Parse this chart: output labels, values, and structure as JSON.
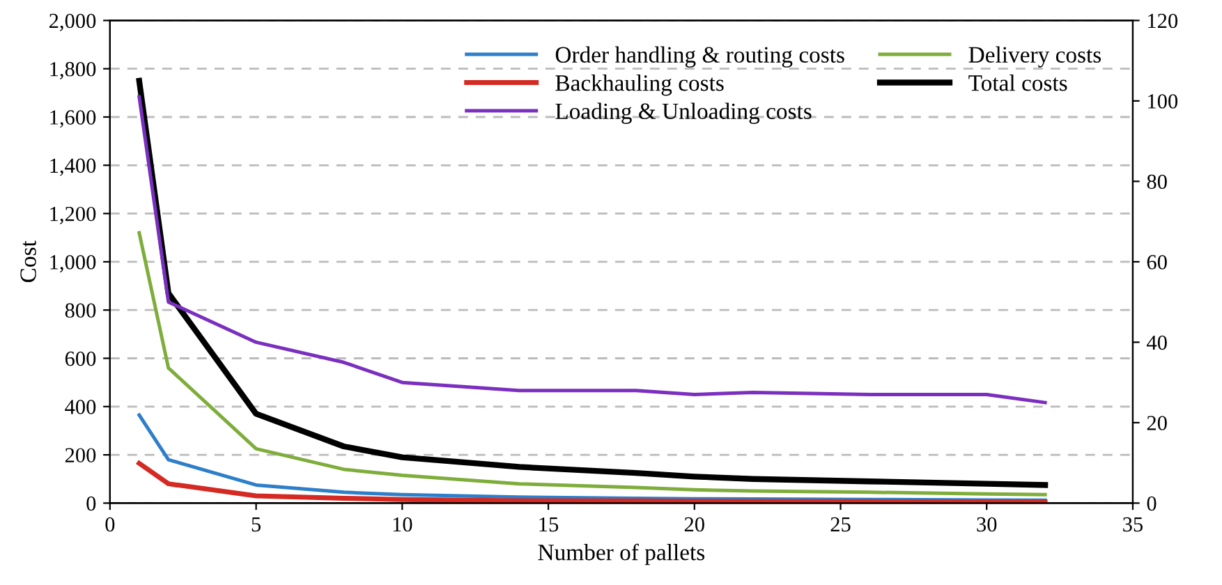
{
  "chart_data": {
    "type": "line",
    "xlabel": "Number of pallets",
    "ylabel": "Cost",
    "x": [
      1,
      2,
      5,
      8,
      10,
      14,
      18,
      20,
      22,
      26,
      30,
      32
    ],
    "series": [
      {
        "name": "Order handling & routing costs",
        "color": "#2e7fc9",
        "values": [
          365,
          180,
          75,
          45,
          35,
          25,
          20,
          18,
          17,
          15,
          13,
          12
        ]
      },
      {
        "name": "Backhauling costs",
        "color": "#d42a23",
        "values": [
          165,
          80,
          30,
          20,
          15,
          10,
          9,
          8,
          7,
          6,
          5,
          5
        ]
      },
      {
        "name": "Loading & Unloading costs",
        "color": "#7b2fbf",
        "axis": "y2",
        "values": [
          101,
          50,
          40,
          35,
          30,
          28,
          28,
          27,
          27.5,
          27,
          27,
          25
        ]
      },
      {
        "name": "Delivery costs",
        "color": "#7fad3b",
        "values": [
          1120,
          560,
          225,
          140,
          115,
          80,
          65,
          55,
          50,
          45,
          38,
          35
        ]
      },
      {
        "name": "Total costs",
        "color": "#000000",
        "values": [
          1750,
          870,
          370,
          235,
          190,
          150,
          125,
          110,
          100,
          90,
          80,
          75
        ]
      }
    ],
    "xlim": [
      0,
      35
    ],
    "xticks": [
      0,
      5,
      10,
      15,
      20,
      25,
      30,
      35
    ],
    "ylim": [
      0,
      2000
    ],
    "yticks": [
      0,
      200,
      400,
      600,
      800,
      {
        "value": 1000,
        "label": "1,000"
      },
      {
        "value": 1200,
        "label": "1,200"
      },
      {
        "value": 1400,
        "label": "1,400"
      },
      {
        "value": 1600,
        "label": "1,600"
      },
      {
        "value": 1800,
        "label": "1,800"
      },
      {
        "value": 2000,
        "label": "2,000"
      }
    ],
    "y2lim": [
      0,
      120
    ],
    "y2ticks": [
      0,
      20,
      40,
      60,
      80,
      100,
      120
    ],
    "grid": "y",
    "legend": "top right",
    "line_style": "solid",
    "marker": "none"
  }
}
